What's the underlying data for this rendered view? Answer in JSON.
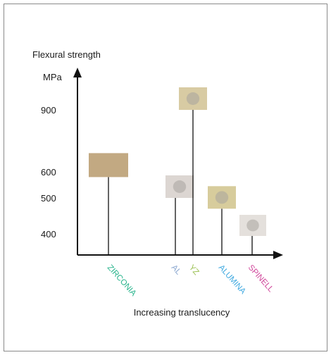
{
  "chart_data": {
    "type": "bar",
    "title": "",
    "ylabel": "Flexural strength",
    "yunit": "MPa",
    "xlabel": "Increasing translucency",
    "yticks": [
      400,
      500,
      600,
      900
    ],
    "ylim": [
      300,
      1000
    ],
    "grid": false,
    "categories": [
      {
        "name": "ZIRCONIA",
        "color": "#28b48c"
      },
      {
        "name": "AL",
        "color": "#8aa7d0"
      },
      {
        "name": "YZ",
        "color": "#9ac050"
      },
      {
        "name": "ALUMINA",
        "color": "#3fa9e0"
      },
      {
        "name": "SPINELL",
        "color": "#d0479b"
      }
    ],
    "series": [
      {
        "values": [
          580,
          500,
          900,
          470,
          390
        ]
      }
    ],
    "swatches": [
      "#c2a982",
      "#dcd6d2",
      "#d8cba3",
      "#d7cc9c",
      "#e4e0dc"
    ]
  }
}
